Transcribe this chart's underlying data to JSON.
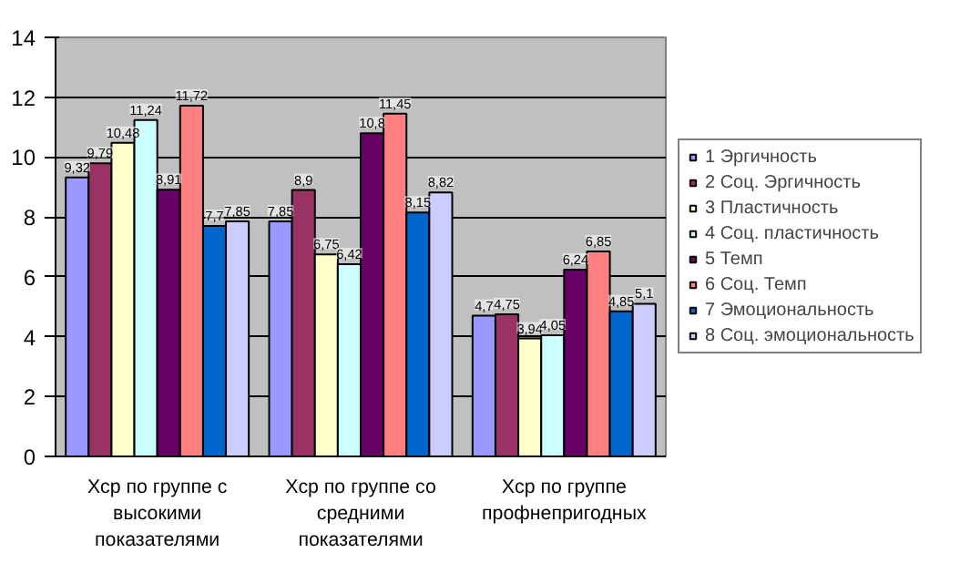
{
  "chart_data": {
    "type": "bar",
    "categories": [
      "Xср по группе с\nвысокими\nпоказателями",
      "Xср по группе со\nсредними\nпоказателями",
      "Xср по группе\nпрофнепригодных"
    ],
    "series": [
      {
        "name": "1 Эргичность",
        "color": "#9999ff",
        "values": [
          9.32,
          7.85,
          4.7
        ],
        "value_labels": [
          "9,32",
          "7,85",
          "4,7"
        ]
      },
      {
        "name": "2 Соц. Эргичность",
        "color": "#993366",
        "values": [
          9.79,
          8.9,
          4.75
        ],
        "value_labels": [
          "9,79",
          "8,9",
          "4,75"
        ]
      },
      {
        "name": "3 Пластичность",
        "color": "#ffffcc",
        "values": [
          10.48,
          6.75,
          3.94
        ],
        "value_labels": [
          "10,48",
          "6,75",
          "3,94"
        ]
      },
      {
        "name": "4 Соц. пластичность",
        "color": "#ccffff",
        "values": [
          11.24,
          6.42,
          4.05
        ],
        "value_labels": [
          "11,24",
          "6,42",
          "4,05"
        ]
      },
      {
        "name": "5 Темп",
        "color": "#660066",
        "values": [
          8.91,
          10.8,
          6.24
        ],
        "value_labels": [
          "8,91",
          "10,8",
          "6,24"
        ]
      },
      {
        "name": "6 Соц. Темп",
        "color": "#ff8080",
        "values": [
          11.72,
          11.45,
          6.85
        ],
        "value_labels": [
          "11,72",
          "11,45",
          "6,85"
        ]
      },
      {
        "name": "7 Эмоциональность",
        "color": "#0066cc",
        "values": [
          7.7,
          8.15,
          4.85
        ],
        "value_labels": [
          "7,7",
          "8,15",
          "4,85"
        ]
      },
      {
        "name": "8 Соц. эмоциональность",
        "color": "#ccccff",
        "values": [
          7.85,
          8.82,
          5.1
        ],
        "value_labels": [
          "7,85",
          "8,82",
          "5,1"
        ]
      }
    ],
    "ylim": [
      0,
      14
    ],
    "yticks": [
      0,
      2,
      4,
      6,
      8,
      10,
      12,
      14
    ],
    "grid": "y",
    "legend": "right"
  }
}
